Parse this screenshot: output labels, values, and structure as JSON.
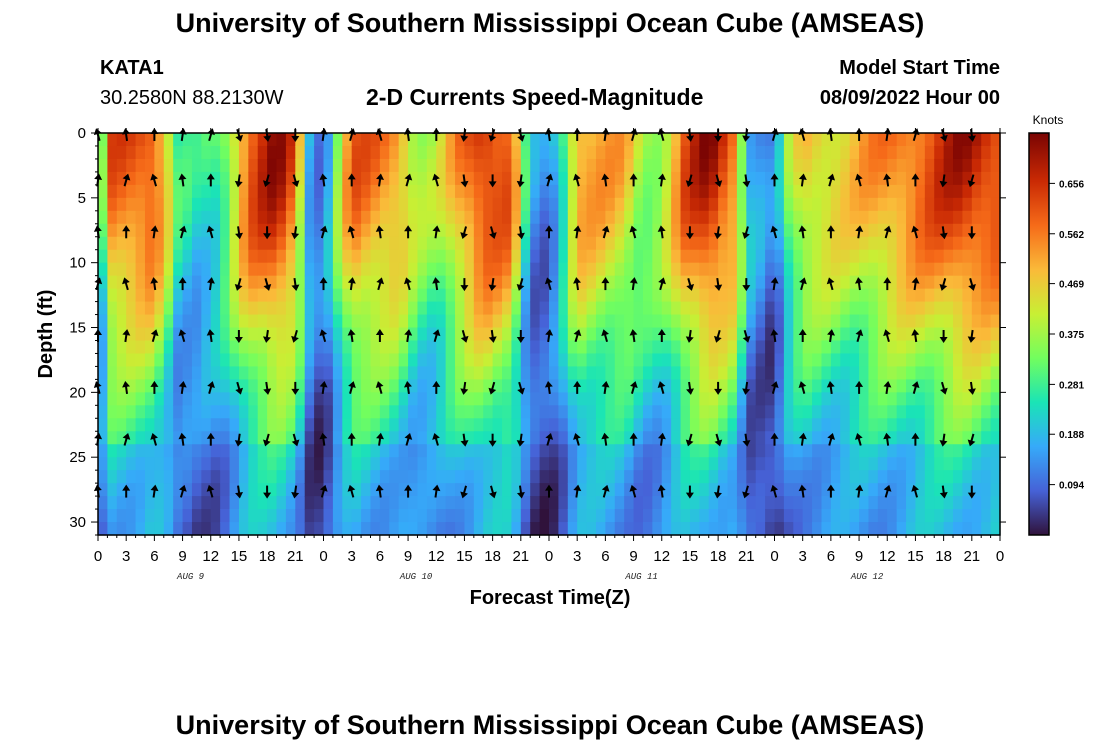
{
  "header": {
    "title_top": "University of Southern Mississippi Ocean Cube (AMSEAS)",
    "station": "KATA1",
    "coords": "30.2580N  88.2130W",
    "plot_title": "2-D Currents Speed-Magnitude",
    "model_start_label": "Model Start Time",
    "model_start_value": "08/09/2022 Hour 00",
    "title_bottom": "University of Southern Mississippi Ocean Cube (AMSEAS)"
  },
  "chart_data": {
    "type": "heatmap",
    "title": "2-D Currents Speed-Magnitude",
    "xlabel": "Forecast Time(Z)",
    "ylabel": "Depth (ft)",
    "x_ticks": [
      "0",
      "3",
      "6",
      "9",
      "12",
      "15",
      "18",
      "21",
      "0",
      "3",
      "6",
      "9",
      "12",
      "15",
      "18",
      "21",
      "0",
      "3",
      "6",
      "9",
      "12",
      "15",
      "18",
      "21",
      "0",
      "3",
      "6",
      "9",
      "12",
      "15",
      "18",
      "21",
      "0"
    ],
    "x_hours_range": [
      0,
      96
    ],
    "date_labels": [
      {
        "label": "AUG 9",
        "hour": 9
      },
      {
        "label": "AUG 10",
        "hour": 33
      },
      {
        "label": "AUG 11",
        "hour": 57
      },
      {
        "label": "AUG 12",
        "hour": 81
      }
    ],
    "y_ticks": [
      0,
      5,
      10,
      15,
      20,
      25,
      30
    ],
    "ylim": [
      0,
      31
    ],
    "colorbar": {
      "unit": "Knots",
      "range": [
        0.0,
        0.75
      ],
      "ticks": [
        "0.656",
        "0.562",
        "0.469",
        "0.375",
        "0.281",
        "0.188",
        "0.094"
      ],
      "tick_values": [
        0.656,
        0.562,
        0.469,
        0.375,
        0.281,
        0.188,
        0.094
      ],
      "colors": [
        "#30123b",
        "#4662d7",
        "#36aaf9",
        "#1ae4b6",
        "#72fe5e",
        "#c8ef34",
        "#faba39",
        "#f66b19",
        "#ca2a04",
        "#7a0403"
      ]
    },
    "surface_speed_by_hour": [
      [
        0,
        0.18
      ],
      [
        1.5,
        0.6
      ],
      [
        6,
        0.64
      ],
      [
        7.5,
        0.45
      ],
      [
        8.5,
        0.28
      ],
      [
        10.5,
        0.24
      ],
      [
        13,
        0.3
      ],
      [
        16,
        0.62
      ],
      [
        19,
        0.72
      ],
      [
        21,
        0.6
      ],
      [
        22.5,
        0.2
      ],
      [
        24,
        0.1
      ],
      [
        25,
        0.3
      ],
      [
        27,
        0.6
      ],
      [
        32,
        0.55
      ],
      [
        34,
        0.4
      ],
      [
        36,
        0.38
      ],
      [
        38.5,
        0.55
      ],
      [
        41,
        0.68
      ],
      [
        44,
        0.62
      ],
      [
        46,
        0.15
      ],
      [
        48,
        0.12
      ],
      [
        49.5,
        0.3
      ],
      [
        51,
        0.55
      ],
      [
        56,
        0.5
      ],
      [
        58,
        0.38
      ],
      [
        60,
        0.4
      ],
      [
        62.5,
        0.62
      ],
      [
        65,
        0.72
      ],
      [
        67.5,
        0.6
      ],
      [
        69.5,
        0.2
      ],
      [
        72,
        0.1
      ],
      [
        73.5,
        0.35
      ],
      [
        75,
        0.48
      ],
      [
        80,
        0.48
      ],
      [
        84,
        0.56
      ],
      [
        88,
        0.62
      ],
      [
        92,
        0.7
      ],
      [
        96,
        0.66
      ]
    ],
    "arrow_depths_ft": [
      0,
      3.5,
      7.5,
      11.5,
      15.5,
      19.5,
      23.5,
      27.5
    ],
    "arrow_direction_by_hour": [
      {
        "hour": 0,
        "dir": "N"
      },
      {
        "hour": 15,
        "dir": "S"
      },
      {
        "hour": 23,
        "dir": "N"
      },
      {
        "hour": 38,
        "dir": "S"
      },
      {
        "hour": 47,
        "dir": "N"
      },
      {
        "hour": 61,
        "dir": "S"
      },
      {
        "hour": 71,
        "dir": "N"
      },
      {
        "hour": 88,
        "dir": "S"
      }
    ]
  }
}
